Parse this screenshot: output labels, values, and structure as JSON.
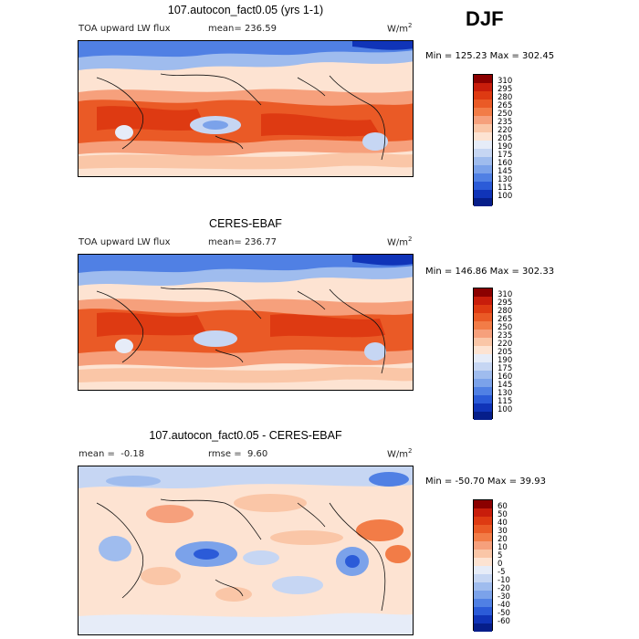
{
  "season": "DJF",
  "panels": [
    {
      "title": "107.autocon_fact0.05 (yrs 1-1)",
      "variable": "TOA upward LW flux",
      "stat_label": "mean=",
      "stat_value": "236.59",
      "units": "W/m",
      "units_sup": "2",
      "minmax": "Min = 125.23 Max = 302.45",
      "levels": [
        "310",
        "295",
        "280",
        "265",
        "250",
        "235",
        "220",
        "205",
        "190",
        "175",
        "160",
        "145",
        "130",
        "115",
        "100"
      ],
      "colors": [
        "#8b0000",
        "#c81d0b",
        "#de3a12",
        "#ea5a26",
        "#f27c47",
        "#f6a07c",
        "#fac6a7",
        "#fde3d2",
        "#e6ecf8",
        "#c6d6f3",
        "#9fbcee",
        "#7ba2ea",
        "#5080e4",
        "#2b5bd8",
        "#1034b8",
        "#061e8a"
      ]
    },
    {
      "title": "CERES-EBAF",
      "variable": "TOA upward LW flux",
      "stat_label": "mean=",
      "stat_value": "236.77",
      "units": "W/m",
      "units_sup": "2",
      "minmax": "Min = 146.86 Max = 302.33",
      "levels": [
        "310",
        "295",
        "280",
        "265",
        "250",
        "235",
        "220",
        "205",
        "190",
        "175",
        "160",
        "145",
        "130",
        "115",
        "100"
      ],
      "colors": [
        "#8b0000",
        "#c81d0b",
        "#de3a12",
        "#ea5a26",
        "#f27c47",
        "#f6a07c",
        "#fac6a7",
        "#fde3d2",
        "#e6ecf8",
        "#c6d6f3",
        "#9fbcee",
        "#7ba2ea",
        "#5080e4",
        "#2b5bd8",
        "#1034b8",
        "#061e8a"
      ]
    },
    {
      "title": "107.autocon_fact0.05 - CERES-EBAF",
      "stat_label": "mean =",
      "stat_value": "-0.18",
      "rmse_label": "rmse =",
      "rmse_value": "9.60",
      "units": "W/m",
      "units_sup": "2",
      "minmax": "Min = -50.70 Max =  39.93",
      "levels": [
        "60",
        "50",
        "40",
        "30",
        "20",
        "10",
        "5",
        "0",
        "-5",
        "-10",
        "-20",
        "-30",
        "-40",
        "-50",
        "-60"
      ],
      "colors": [
        "#8b0000",
        "#c81d0b",
        "#de3a12",
        "#ea5a26",
        "#f27c47",
        "#f6a07c",
        "#fac6a7",
        "#fde3d2",
        "#e6ecf8",
        "#c6d6f3",
        "#9fbcee",
        "#7ba2ea",
        "#5080e4",
        "#2b5bd8",
        "#1034b8",
        "#061e8a"
      ]
    }
  ]
}
